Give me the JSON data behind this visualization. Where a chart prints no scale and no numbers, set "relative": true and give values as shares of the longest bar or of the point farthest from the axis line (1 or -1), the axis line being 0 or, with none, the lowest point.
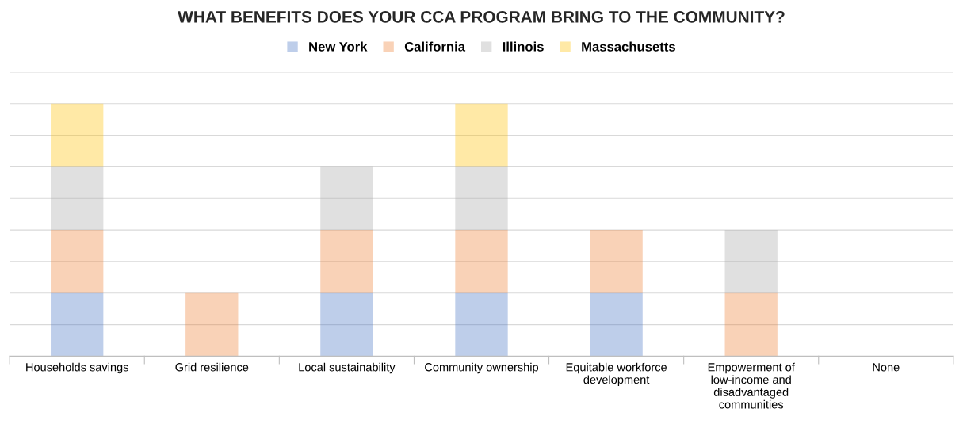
{
  "chart_data": {
    "type": "bar",
    "title": "WHAT BENEFITS DOES YOUR CCA PROGRAM BRING TO THE COMMUNITY?",
    "categories": [
      "Households savings",
      "Grid resilience",
      "Local sustainability",
      "Community ownership",
      "Equitable workforce development",
      "Empowerment of low-income and disadvantaged communities",
      "None"
    ],
    "stacked": true,
    "relative": true,
    "grid": true,
    "legend": "top",
    "series": [
      {
        "name": "New York",
        "color": "#4472c4",
        "values": [
          0.25,
          0,
          0.25,
          0.25,
          0.25,
          0,
          0
        ]
      },
      {
        "name": "California",
        "color": "#ed7d31",
        "values": [
          0.25,
          0.25,
          0.25,
          0.25,
          0.25,
          0.25,
          0
        ]
      },
      {
        "name": "Illinois",
        "color": "#a5a5a5",
        "values": [
          0.25,
          0,
          0.25,
          0.25,
          0,
          0.25,
          0
        ]
      },
      {
        "name": "Massachusetts",
        "color": "#ffc000",
        "values": [
          0.25,
          0,
          0,
          0.25,
          0,
          0,
          0
        ]
      }
    ]
  }
}
